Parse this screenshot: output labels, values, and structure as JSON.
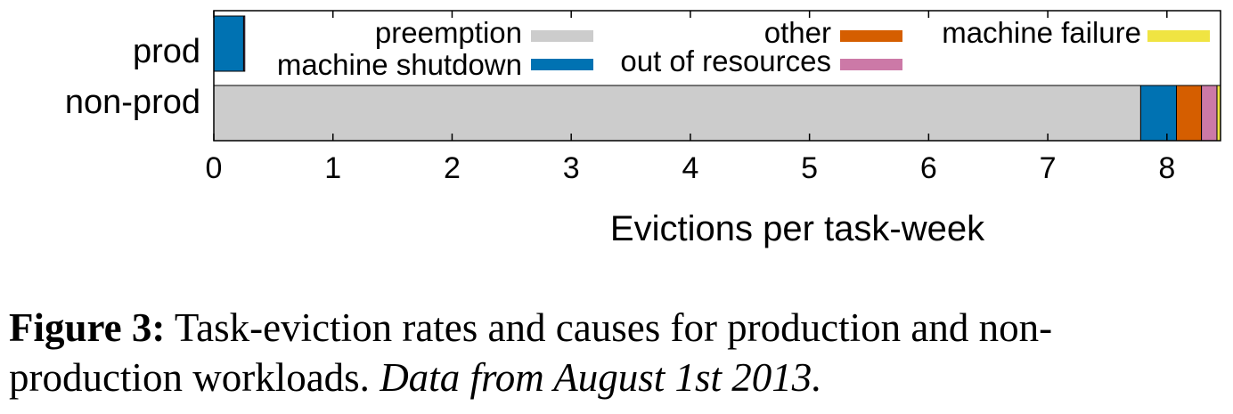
{
  "chart_data": {
    "type": "bar",
    "orientation": "horizontal",
    "stacked": true,
    "categories": [
      "prod",
      "non-prod"
    ],
    "series": [
      {
        "name": "preemption",
        "color": "#cccccc",
        "values": [
          0.0,
          7.78
        ]
      },
      {
        "name": "machine shutdown",
        "color": "#0072b2",
        "values": [
          0.25,
          0.3
        ]
      },
      {
        "name": "other",
        "color": "#d55e00",
        "values": [
          0.0,
          0.21
        ]
      },
      {
        "name": "out of resources",
        "color": "#cc79a7",
        "values": [
          0.01,
          0.13
        ]
      },
      {
        "name": "machine failure",
        "color": "#f0e442",
        "values": [
          0.0,
          0.03
        ]
      }
    ],
    "xlabel": "Evictions per task-week",
    "ylabel": "",
    "xlim": [
      0,
      8.45
    ],
    "xticks": [
      "0",
      "1",
      "2",
      "3",
      "4",
      "5",
      "6",
      "7",
      "8"
    ],
    "grid": false,
    "legend_position": "top-inside"
  },
  "caption": {
    "label": "Figure 3:",
    "text": " Task-eviction rates and causes for production and non-production workloads. ",
    "note": "Data from August 1st 2013."
  }
}
